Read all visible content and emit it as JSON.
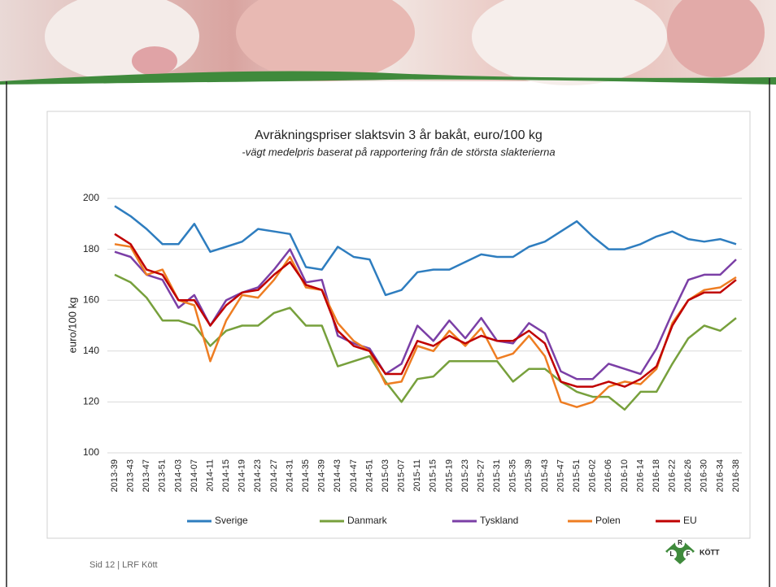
{
  "chart_data": {
    "type": "line",
    "title": "Avräkningspriser slaktsvin 3 år bakåt, euro/100 kg",
    "subtitle": "-vägt medelpris baserat på rapportering från de största slakterierna",
    "y_label": "euro/100 kg",
    "categories": [
      "2013-39",
      "2013-43",
      "2013-47",
      "2013-51",
      "2014-03",
      "2014-07",
      "2014-11",
      "2014-15",
      "2014-19",
      "2014-23",
      "2014-27",
      "2014-31",
      "2014-35",
      "2014-39",
      "2014-43",
      "2014-47",
      "2014-51",
      "2015-03",
      "2015-07",
      "2015-11",
      "2015-15",
      "2015-19",
      "2015-23",
      "2015-27",
      "2015-31",
      "2015-35",
      "2015-39",
      "2015-43",
      "2015-47",
      "2015-51",
      "2016-02",
      "2016-06",
      "2016-10",
      "2016-14",
      "2016-18",
      "2016-22",
      "2016-26",
      "2016-30",
      "2016-34",
      "2016-38"
    ],
    "series": [
      {
        "name": "Sverige",
        "color": "#2e7dbf",
        "values": [
          197,
          193,
          188,
          182,
          182,
          190,
          179,
          181,
          183,
          188,
          187,
          186,
          173,
          172,
          181,
          177,
          176,
          162,
          164,
          171,
          172,
          172,
          175,
          178,
          177,
          177,
          181,
          183,
          187,
          191,
          185,
          180,
          180,
          182,
          185,
          187,
          184,
          183,
          184,
          182
        ]
      },
      {
        "name": "Danmark",
        "color": "#77a03c",
        "values": [
          170,
          167,
          161,
          152,
          152,
          150,
          142,
          148,
          150,
          150,
          155,
          157,
          150,
          150,
          134,
          136,
          138,
          128,
          120,
          129,
          130,
          136,
          136,
          136,
          136,
          128,
          133,
          133,
          128,
          124,
          122,
          122,
          117,
          124,
          124,
          135,
          145,
          150,
          148,
          153
        ]
      },
      {
        "name": "Tyskland",
        "color": "#7b3fa6",
        "values": [
          179,
          177,
          170,
          168,
          157,
          162,
          150,
          160,
          163,
          165,
          172,
          180,
          167,
          168,
          146,
          143,
          141,
          131,
          135,
          150,
          144,
          152,
          145,
          153,
          144,
          143,
          151,
          147,
          132,
          129,
          129,
          135,
          133,
          131,
          141,
          155,
          168,
          170,
          170,
          176
        ]
      },
      {
        "name": "Polen",
        "color": "#ee7d22",
        "values": [
          182,
          181,
          170,
          172,
          160,
          158,
          136,
          152,
          162,
          161,
          168,
          177,
          165,
          164,
          151,
          144,
          140,
          127,
          128,
          142,
          140,
          148,
          142,
          149,
          137,
          139,
          146,
          138,
          120,
          118,
          120,
          126,
          128,
          127,
          133,
          151,
          160,
          164,
          165,
          169
        ]
      },
      {
        "name": "EU",
        "color": "#c00000",
        "values": [
          186,
          182,
          172,
          170,
          160,
          160,
          150,
          158,
          163,
          164,
          170,
          175,
          166,
          164,
          148,
          142,
          140,
          131,
          131,
          144,
          142,
          146,
          143,
          146,
          144,
          144,
          148,
          143,
          128,
          126,
          126,
          128,
          126,
          129,
          134,
          150,
          160,
          163,
          163,
          168
        ]
      }
    ],
    "ylim": [
      100,
      200
    ],
    "yticks": [
      100,
      120,
      140,
      160,
      180,
      200
    ],
    "grid": true,
    "legend": "bottom",
    "footer": "Sid 12 | LRF Kött",
    "logo": {
      "letters": [
        "L",
        "R",
        "F"
      ],
      "text": "KÖTT"
    }
  }
}
